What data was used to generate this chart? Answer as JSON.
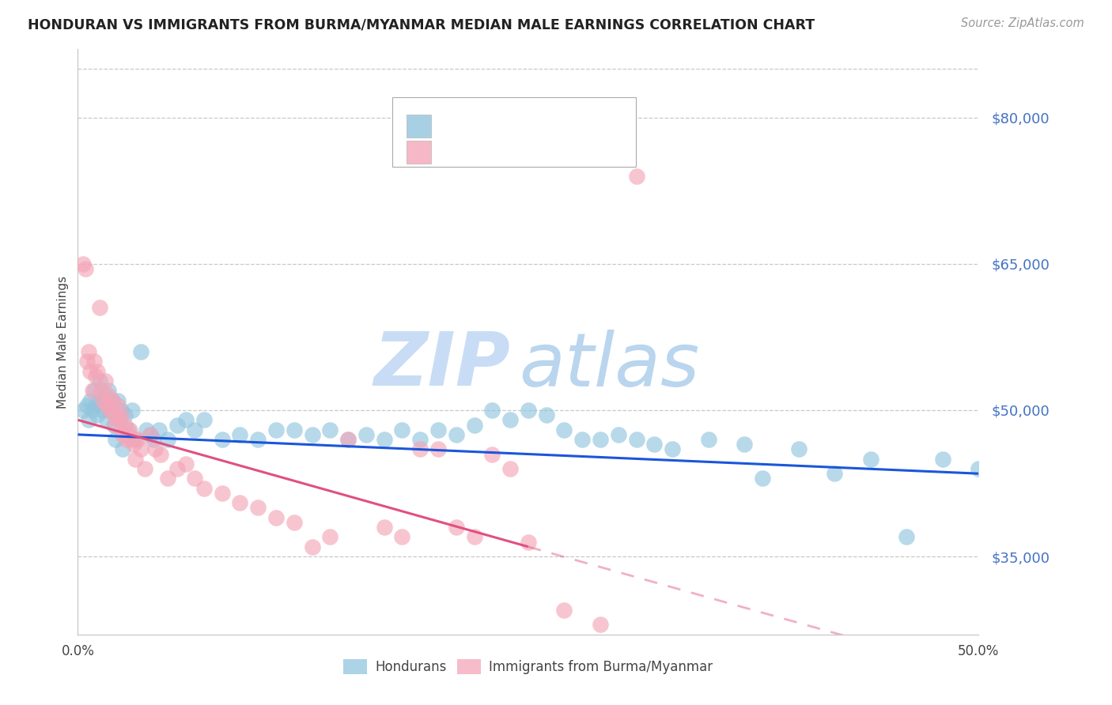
{
  "title": "HONDURAN VS IMMIGRANTS FROM BURMA/MYANMAR MEDIAN MALE EARNINGS CORRELATION CHART",
  "source": "Source: ZipAtlas.com",
  "ylabel": "Median Male Earnings",
  "xlim": [
    0.0,
    0.5
  ],
  "ylim": [
    27000,
    87000
  ],
  "yticks": [
    35000,
    50000,
    65000,
    80000
  ],
  "ytick_labels": [
    "$35,000",
    "$50,000",
    "$65,000",
    "$80,000"
  ],
  "xticks": [
    0.0,
    0.1,
    0.2,
    0.3,
    0.4,
    0.5
  ],
  "xtick_labels": [
    "0.0%",
    "",
    "",
    "",
    "",
    "50.0%"
  ],
  "blue_color": "#92c5de",
  "pink_color": "#f4a6b8",
  "trend_blue": "#1a56db",
  "trend_pink": "#e05080",
  "watermark_zip_color": "#c8ddf5",
  "watermark_atlas_color": "#9dc4e8",
  "blue_scatter_x": [
    0.003,
    0.005,
    0.006,
    0.007,
    0.008,
    0.009,
    0.01,
    0.011,
    0.012,
    0.013,
    0.014,
    0.015,
    0.016,
    0.017,
    0.018,
    0.019,
    0.02,
    0.021,
    0.022,
    0.023,
    0.024,
    0.025,
    0.026,
    0.028,
    0.03,
    0.032,
    0.035,
    0.038,
    0.04,
    0.042,
    0.045,
    0.05,
    0.055,
    0.06,
    0.065,
    0.07,
    0.08,
    0.09,
    0.1,
    0.11,
    0.12,
    0.13,
    0.14,
    0.15,
    0.16,
    0.17,
    0.18,
    0.19,
    0.2,
    0.21,
    0.22,
    0.23,
    0.24,
    0.25,
    0.26,
    0.27,
    0.28,
    0.29,
    0.3,
    0.31,
    0.32,
    0.33,
    0.35,
    0.37,
    0.38,
    0.4,
    0.42,
    0.44,
    0.46,
    0.48,
    0.5
  ],
  "blue_scatter_y": [
    50000,
    50500,
    49000,
    51000,
    50000,
    52000,
    50500,
    49500,
    53000,
    51000,
    50000,
    51500,
    49000,
    52000,
    50000,
    51000,
    48500,
    47000,
    51000,
    49000,
    50000,
    46000,
    49500,
    48000,
    50000,
    47000,
    56000,
    48000,
    47500,
    47000,
    48000,
    47000,
    48500,
    49000,
    48000,
    49000,
    47000,
    47500,
    47000,
    48000,
    48000,
    47500,
    48000,
    47000,
    47500,
    47000,
    48000,
    47000,
    48000,
    47500,
    48500,
    50000,
    49000,
    50000,
    49500,
    48000,
    47000,
    47000,
    47500,
    47000,
    46500,
    46000,
    47000,
    46500,
    43000,
    46000,
    43500,
    45000,
    37000,
    45000,
    44000
  ],
  "pink_scatter_x": [
    0.003,
    0.004,
    0.005,
    0.006,
    0.007,
    0.008,
    0.009,
    0.01,
    0.011,
    0.012,
    0.013,
    0.014,
    0.015,
    0.016,
    0.017,
    0.018,
    0.019,
    0.02,
    0.021,
    0.022,
    0.023,
    0.024,
    0.025,
    0.026,
    0.027,
    0.028,
    0.029,
    0.03,
    0.031,
    0.032,
    0.033,
    0.035,
    0.037,
    0.04,
    0.043,
    0.046,
    0.05,
    0.055,
    0.06,
    0.065,
    0.07,
    0.08,
    0.09,
    0.1,
    0.11,
    0.12,
    0.13,
    0.14,
    0.15,
    0.17,
    0.18,
    0.19,
    0.2,
    0.21,
    0.22,
    0.23,
    0.24,
    0.25,
    0.27,
    0.29,
    0.31
  ],
  "pink_scatter_y": [
    65000,
    64500,
    55000,
    56000,
    54000,
    52000,
    55000,
    53500,
    54000,
    60500,
    52000,
    51000,
    53000,
    50500,
    51500,
    50000,
    51000,
    49500,
    48500,
    50500,
    49000,
    49500,
    47500,
    48500,
    47000,
    47500,
    48000,
    47000,
    46500,
    45000,
    47000,
    46000,
    44000,
    47500,
    46000,
    45500,
    43000,
    44000,
    44500,
    43000,
    42000,
    41500,
    40500,
    40000,
    39000,
    38500,
    36000,
    37000,
    47000,
    38000,
    37000,
    46000,
    46000,
    38000,
    37000,
    45500,
    44000,
    36500,
    29500,
    28000,
    74000
  ]
}
